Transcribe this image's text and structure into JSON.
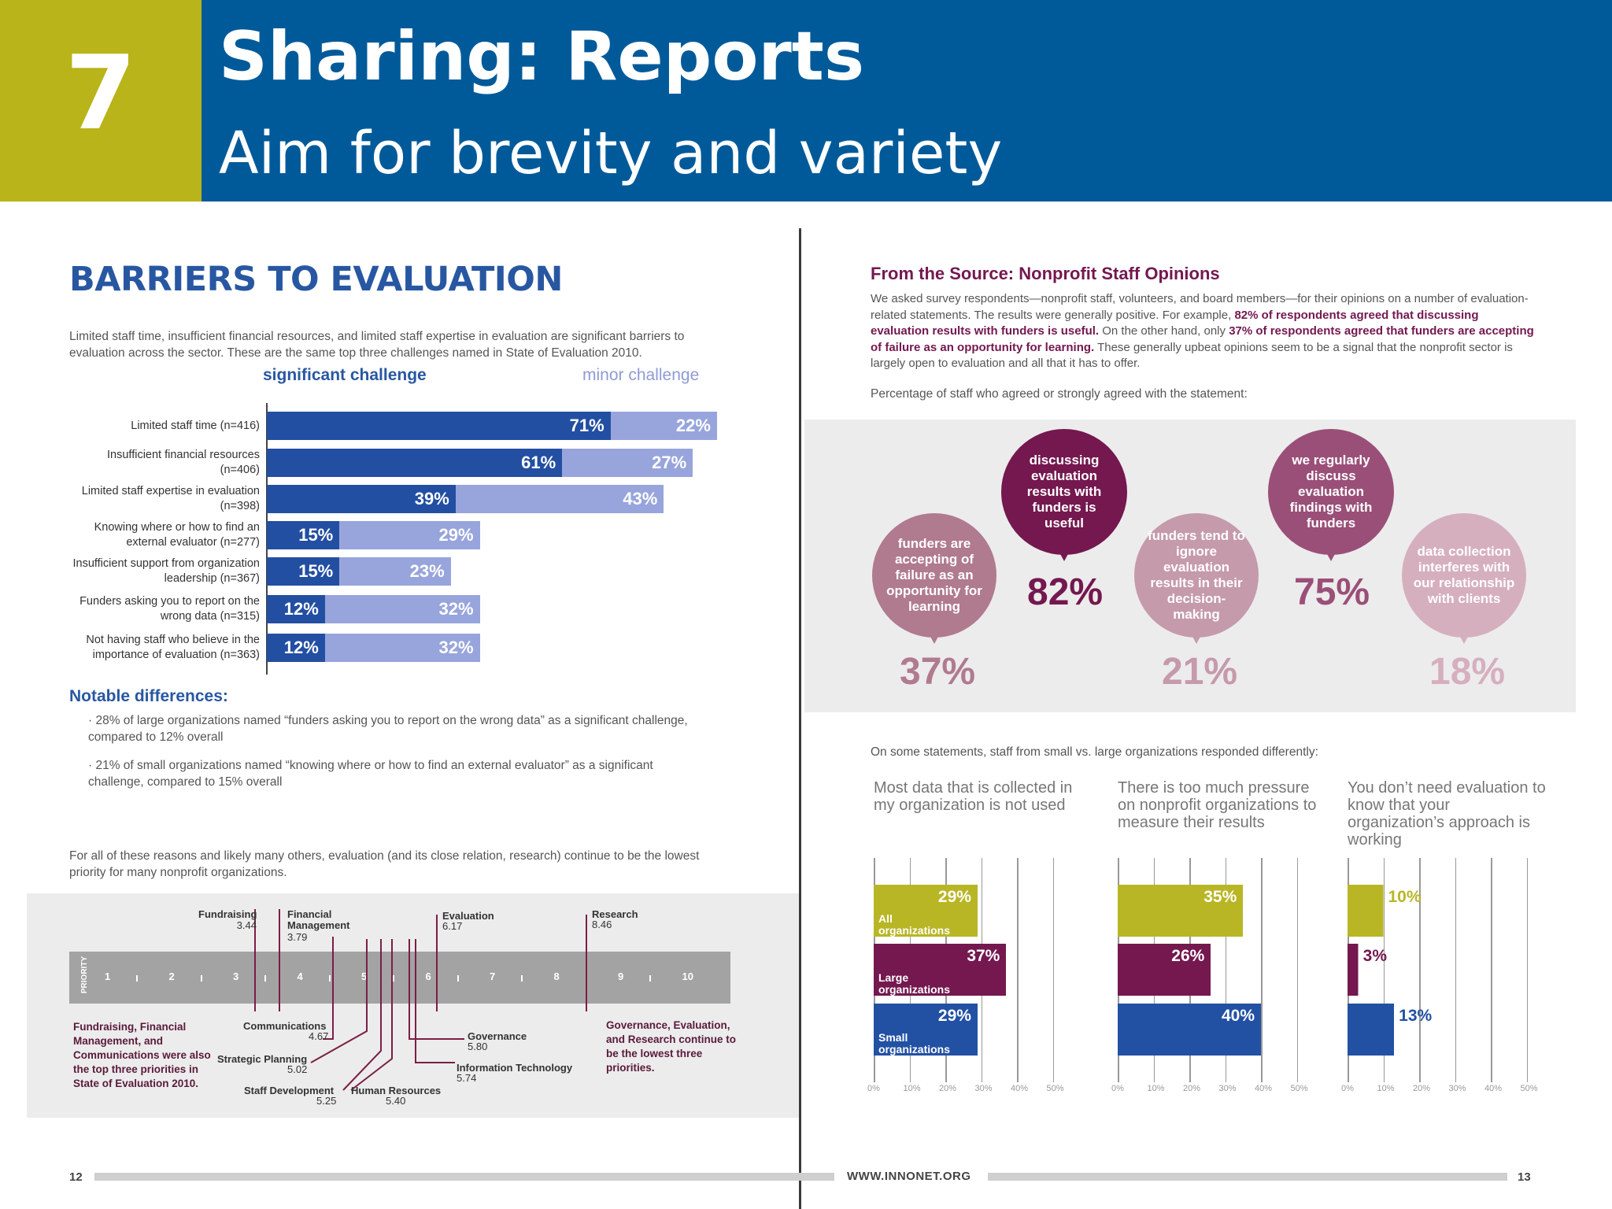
{
  "header": {
    "number": "7",
    "title": "Sharing: Reports",
    "subtitle": "Aim for brevity and variety"
  },
  "left": {
    "title": "BARRIERS TO EVALUATION",
    "intro": "Limited staff time, insufficient financial resources, and limited staff expertise in evaluation are significant barriers to evaluation across the sector. These are the same top three challenges named in State of Evaluation 2010.",
    "legend": {
      "significant": "significant challenge",
      "minor": "minor challenge"
    },
    "notable_title": "Notable differences:",
    "notable": [
      "28% of large organizations named “funders asking you to report on the wrong data” as a significant challenge, compared to 12% overall",
      "21% of small organizations named “knowing where or how to find an external evaluator” as a significant challenge, compared to 15% overall"
    ],
    "priority_intro": "For all of these reasons and likely many others, evaluation (and its close relation, research) continue to be the lowest priority for many nonprofit organizations.",
    "priority_axis_label": "PRIORITY",
    "priority_ticks": [
      "1",
      "2",
      "3",
      "4",
      "5",
      "6",
      "7",
      "8",
      "9",
      "10"
    ],
    "top_labels": {
      "fundraising": "Fundraising",
      "fundraising_val": "3.44",
      "financial": "Financial Management",
      "financial_val": "3.79",
      "evaluation": "Evaluation",
      "evaluation_val": "6.17",
      "research": "Research",
      "research_val": "8.46"
    },
    "bottom_labels": {
      "communications": "Communications",
      "communications_val": "4.67",
      "strategic": "Strategic Planning",
      "strategic_val": "5.02",
      "staffdev": "Staff Development",
      "staffdev_val": "5.25",
      "hr": "Human Resources",
      "hr_val": "5.40",
      "governance": "Governance",
      "governance_val": "5.80",
      "it": "Information Technology",
      "it_val": "5.74"
    },
    "note_left": "Fundraising, Financial Management, and Communications were also the top three priorities in State of Evaluation 2010.",
    "note_right": "Governance, Evaluation, and Research continue to be the lowest three priorities.",
    "page_number": "12"
  },
  "right": {
    "title": "From the Source: Nonprofit Staff Opinions",
    "intro": "We asked survey respondents—nonprofit staff, volunteers, and board members—for their opinions on a number of evaluation-related statements. The results were generally positive. For example, 82% of respondents agreed that discussing evaluation results with funders is useful. On the other hand, only 37% of respondents agreed that funders are accepting of failure as an opportunity for learning. These generally upbeat opinions seem to be a signal that the nonprofit sector is largely open to evaluation and all that it has to offer.",
    "intro_parts": {
      "a": "We asked survey respondents—nonprofit staff, volunteers, and board members—for their opinions on a number of evaluation-related statements. The results were generally positive. For example, ",
      "b": "82% of respondents agreed that discussing evaluation results with funders is useful.",
      "c": " On the other hand, only ",
      "d": "37% of respondents agreed that funders are accepting of failure as an opportunity for learning.",
      "e": " These generally upbeat opinions seem to be a signal that the nonprofit sector is largely open to evaluation and all that it has to offer."
    },
    "percentage_caption": "Percentage of staff who agreed or strongly agreed with the statement:",
    "bubbles": [
      {
        "text": "funders are accepting of failure as an opportunity for learning",
        "value": "37%",
        "color": "#b07a8f"
      },
      {
        "text": "discussing evaluation results with funders is useful",
        "value": "82%",
        "color": "#74184f"
      },
      {
        "text": "funders tend to ignore evaluation results in their decision-making",
        "value": "21%",
        "color": "#c59aab"
      },
      {
        "text": "we regularly discuss evaluation findings with funders",
        "value": "75%",
        "color": "#9a4f78"
      },
      {
        "text": "data collection interferes with our relationship with clients",
        "value": "18%",
        "color": "#d6afbe"
      }
    ],
    "diff_caption": "On some statements, staff from small vs. large organizations responded differently:",
    "mini_axis": [
      "0%",
      "10%",
      "20%",
      "30%",
      "40%",
      "50%"
    ],
    "footer_url": "WWW.INNONET.ORG",
    "page_number": "13"
  },
  "chart_data": [
    {
      "type": "bar",
      "title": "BARRIERS TO EVALUATION",
      "categories": [
        "Limited staff time (n=416)",
        "Insufficient financial resources (n=406)",
        "Limited staff expertise in evaluation (n=398)",
        "Knowing where or how to find an external evaluator (n=277)",
        "Insufficient support from organization leadership (n=367)",
        "Funders asking you to report on the wrong data (n=315)",
        "Not having staff who believe in the importance of evaluation (n=363)"
      ],
      "category_lines": [
        [
          "Limited staff time (n=416)"
        ],
        [
          "Insufficient financial resources",
          "(n=406)"
        ],
        [
          "Limited staff expertise in evaluation",
          "(n=398)"
        ],
        [
          "Knowing where or how to find an",
          "external evaluator (n=277)"
        ],
        [
          "Insufficient support from organization",
          "leadership (n=367)"
        ],
        [
          "Funders asking you to report on the",
          "wrong data (n=315)"
        ],
        [
          "Not having staff who believe in the",
          "importance of evaluation (n=363)"
        ]
      ],
      "series": [
        {
          "name": "significant challenge",
          "values": [
            71,
            61,
            39,
            15,
            15,
            12,
            12
          ],
          "color": "#234fa2"
        },
        {
          "name": "minor challenge",
          "values": [
            22,
            27,
            43,
            29,
            23,
            32,
            32
          ],
          "color": "#98a5dc"
        }
      ],
      "stacked": true
    },
    {
      "type": "bar",
      "title": "Most data that is collected in my organization is not used",
      "categories": [
        "All organizations",
        "Large organizations",
        "Small organizations"
      ],
      "values": [
        29,
        37,
        29
      ],
      "colors": [
        "#b8b625",
        "#74184f",
        "#2251a4"
      ],
      "xlim": [
        0,
        50
      ]
    },
    {
      "type": "bar",
      "title": "There is too much pressure on nonprofit organizations to measure their results",
      "categories": [
        "All organizations",
        "Large organizations",
        "Small organizations"
      ],
      "values": [
        35,
        26,
        40
      ],
      "colors": [
        "#b8b625",
        "#74184f",
        "#2251a4"
      ],
      "xlim": [
        0,
        50
      ]
    },
    {
      "type": "bar",
      "title": "You don’t need evaluation to know that your organization’s approach is working",
      "categories": [
        "All organizations",
        "Large organizations",
        "Small organizations"
      ],
      "values": [
        10,
        3,
        13
      ],
      "colors": [
        "#b8b625",
        "#74184f",
        "#2251a4"
      ],
      "xlim": [
        0,
        50
      ]
    }
  ]
}
